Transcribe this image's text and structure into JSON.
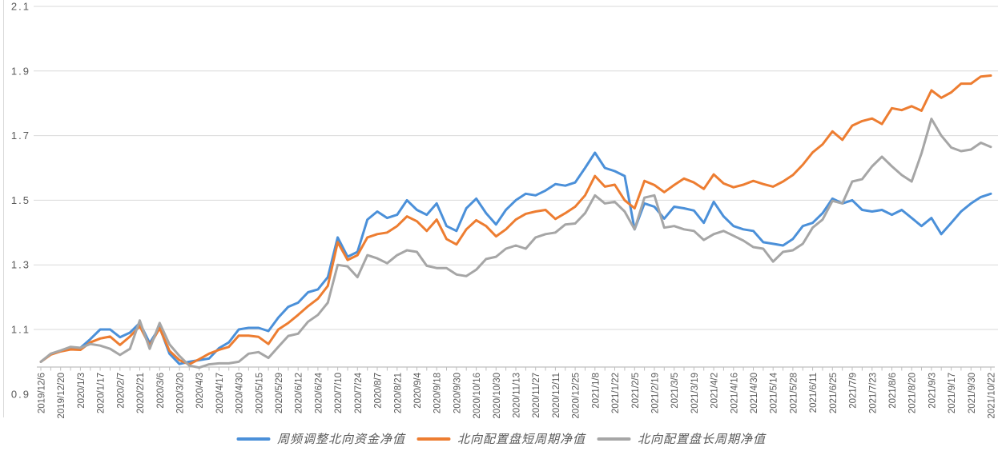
{
  "chart_data": {
    "type": "line",
    "title": "",
    "xlabel": "",
    "ylabel": "",
    "y_axis": {
      "min": 0.9,
      "max": 2.1,
      "step": 0.2,
      "tick_labels": [
        "0.9",
        "1.1",
        "1.3",
        "1.5",
        "1.7",
        "1.9",
        "2.1"
      ]
    },
    "grid": "horizontal",
    "n_points": 97,
    "x_label_every_n_points": 2,
    "x_tick_labels": [
      "2019/12/6",
      "2019/12/20",
      "2020/1/3",
      "2020/1/17",
      "2020/2/7",
      "2020/2/21",
      "2020/3/6",
      "2020/3/20",
      "2020/4/3",
      "2020/4/17",
      "2020/4/30",
      "2020/5/15",
      "2020/5/29",
      "2020/6/12",
      "2020/6/24",
      "2020/7/10",
      "2020/7/24",
      "2020/8/7",
      "2020/8/21",
      "2020/9/4",
      "2020/9/18",
      "2020/9/30",
      "2020/10/16",
      "2020/10/30",
      "2020/11/13",
      "2020/11/27",
      "2020/12/11",
      "2020/12/25",
      "2021/1/8",
      "2021/1/22",
      "2021/2/5",
      "2021/2/19",
      "2021/3/5",
      "2021/3/19",
      "2021/4/2",
      "2021/4/16",
      "2021/4/30",
      "2021/5/14",
      "2021/5/28",
      "2021/6/11",
      "2021/6/25",
      "2021/7/9",
      "2021/7/23",
      "2021/8/6",
      "2021/8/20",
      "2021/9/3",
      "2021/9/17",
      "2021/9/30",
      "2021/10/22"
    ],
    "legend": {
      "position": "bottom"
    },
    "colors": {
      "grid": "#D9D9D9",
      "axis": "#BFBFBF",
      "tick": "#BFBFBF",
      "label_text": "#595959",
      "left_border": "#D9D9D9"
    },
    "series": [
      {
        "name": "周频调整北向资金净值",
        "color": "#4B90D9",
        "values": [
          1.0,
          1.023,
          1.033,
          1.044,
          1.043,
          1.07,
          1.1,
          1.1,
          1.076,
          1.09,
          1.12,
          1.058,
          1.107,
          1.025,
          0.993,
          1.0,
          1.005,
          1.01,
          1.042,
          1.06,
          1.1,
          1.105,
          1.105,
          1.095,
          1.137,
          1.17,
          1.183,
          1.215,
          1.224,
          1.262,
          1.385,
          1.325,
          1.34,
          1.44,
          1.465,
          1.445,
          1.455,
          1.5,
          1.47,
          1.455,
          1.49,
          1.42,
          1.405,
          1.475,
          1.505,
          1.46,
          1.425,
          1.47,
          1.5,
          1.52,
          1.515,
          1.53,
          1.55,
          1.545,
          1.555,
          1.6,
          1.647,
          1.6,
          1.59,
          1.575,
          1.41,
          1.49,
          1.48,
          1.443,
          1.48,
          1.475,
          1.468,
          1.43,
          1.495,
          1.45,
          1.42,
          1.41,
          1.405,
          1.37,
          1.365,
          1.36,
          1.38,
          1.42,
          1.43,
          1.46,
          1.505,
          1.49,
          1.5,
          1.47,
          1.465,
          1.47,
          1.455,
          1.47,
          1.445,
          1.42,
          1.445,
          1.395,
          1.43,
          1.465,
          1.49,
          1.51,
          1.52
        ]
      },
      {
        "name": "北向配置盘短周期净值",
        "color": "#ED7D31",
        "values": [
          1.0,
          1.022,
          1.032,
          1.038,
          1.037,
          1.06,
          1.072,
          1.078,
          1.052,
          1.078,
          1.11,
          1.05,
          1.104,
          1.034,
          1.005,
          0.992,
          1.008,
          1.025,
          1.037,
          1.046,
          1.081,
          1.081,
          1.077,
          1.055,
          1.1,
          1.12,
          1.145,
          1.172,
          1.195,
          1.235,
          1.37,
          1.315,
          1.33,
          1.385,
          1.395,
          1.4,
          1.42,
          1.45,
          1.435,
          1.405,
          1.44,
          1.38,
          1.363,
          1.41,
          1.438,
          1.42,
          1.388,
          1.41,
          1.44,
          1.458,
          1.465,
          1.47,
          1.442,
          1.46,
          1.48,
          1.515,
          1.575,
          1.542,
          1.548,
          1.5,
          1.475,
          1.56,
          1.547,
          1.525,
          1.547,
          1.567,
          1.555,
          1.535,
          1.58,
          1.552,
          1.54,
          1.548,
          1.56,
          1.55,
          1.542,
          1.558,
          1.578,
          1.61,
          1.648,
          1.673,
          1.713,
          1.687,
          1.731,
          1.745,
          1.753,
          1.736,
          1.785,
          1.779,
          1.791,
          1.777,
          1.84,
          1.817,
          1.834,
          1.861,
          1.861,
          1.883,
          1.886
        ]
      },
      {
        "name": "北向配置盘长周期净值",
        "color": "#A6A6A6",
        "values": [
          1.0,
          1.025,
          1.035,
          1.046,
          1.043,
          1.055,
          1.05,
          1.04,
          1.021,
          1.04,
          1.128,
          1.04,
          1.12,
          1.054,
          1.018,
          0.988,
          0.982,
          0.992,
          0.995,
          0.995,
          1.0,
          1.025,
          1.03,
          1.012,
          1.046,
          1.08,
          1.087,
          1.124,
          1.145,
          1.183,
          1.3,
          1.295,
          1.262,
          1.33,
          1.32,
          1.305,
          1.33,
          1.345,
          1.34,
          1.297,
          1.29,
          1.29,
          1.27,
          1.265,
          1.285,
          1.318,
          1.325,
          1.35,
          1.36,
          1.35,
          1.385,
          1.395,
          1.4,
          1.425,
          1.428,
          1.46,
          1.515,
          1.49,
          1.495,
          1.465,
          1.41,
          1.508,
          1.515,
          1.415,
          1.42,
          1.41,
          1.405,
          1.377,
          1.395,
          1.405,
          1.39,
          1.375,
          1.355,
          1.35,
          1.31,
          1.34,
          1.345,
          1.365,
          1.415,
          1.44,
          1.498,
          1.49,
          1.558,
          1.565,
          1.605,
          1.635,
          1.605,
          1.578,
          1.558,
          1.645,
          1.752,
          1.7,
          1.663,
          1.652,
          1.657,
          1.678,
          1.665
        ]
      }
    ]
  }
}
